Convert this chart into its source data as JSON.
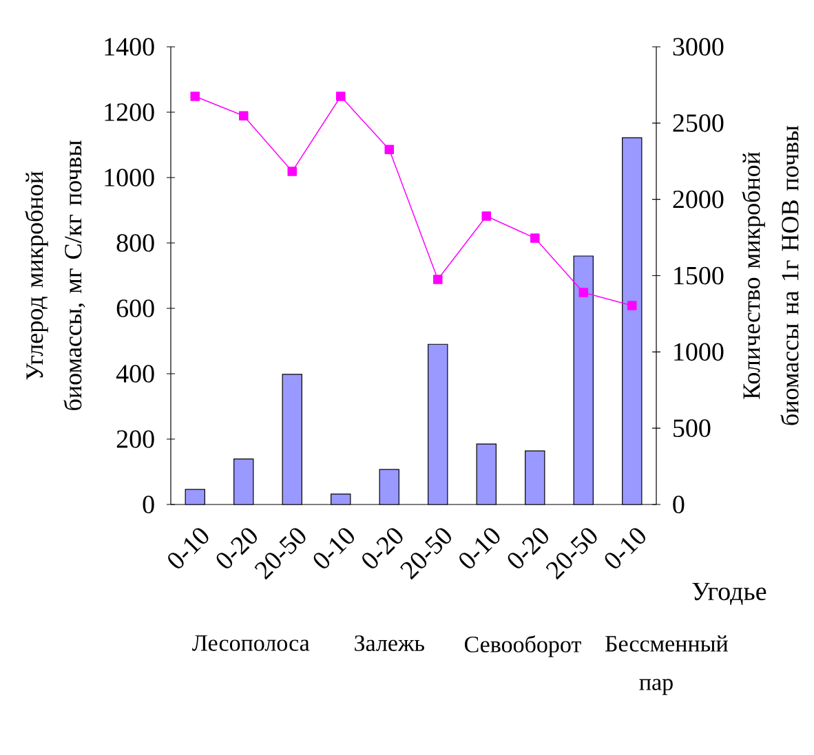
{
  "chart_data": {
    "type": "bar",
    "ylabel": "Углерод микробной биомассы, мг С/кг почвы",
    "y2label": "Количество микробной биомассы на 1г НОВ почвы",
    "xlabel": "Угодье",
    "categories": [
      "0-10",
      "0-20",
      "20-50",
      "0-10",
      "0-20",
      "20-50",
      "0-10",
      "0-20",
      "20-50",
      "0-10"
    ],
    "annotations": [
      "Лесополоса",
      "Залежь",
      "Севооборот",
      "Бессменный пар"
    ],
    "series": [
      {
        "color": "#9999ff",
        "values": [
          46,
          139,
          398,
          32,
          107,
          490,
          185,
          164,
          760,
          1122
        ]
      },
      {
        "type": "line",
        "axis": "y2",
        "color": "#ff00ff",
        "values": [
          2675,
          2548,
          2183,
          2675,
          2327,
          1475,
          1890,
          1746,
          1389,
          1304
        ]
      }
    ],
    "ylim": [
      0,
      1400
    ],
    "yticks": [
      0,
      200,
      400,
      600,
      800,
      1000,
      1200,
      1400
    ],
    "y2lim": [
      0,
      3000
    ],
    "y2ticks": [
      0,
      500,
      1000,
      1500,
      2000,
      2500,
      3000
    ],
    "marker": "square"
  }
}
